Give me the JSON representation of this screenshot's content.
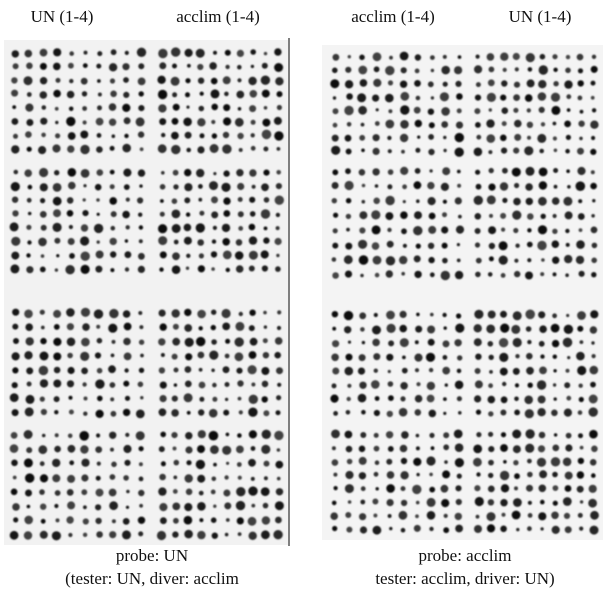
{
  "panels": [
    {
      "column_labels": [
        "UN (1-4)",
        "acclim (1-4)"
      ],
      "caption": [
        "probe: UN",
        "(tester: UN, diver: acclim"
      ]
    },
    {
      "column_labels": [
        "acclim (1-4)",
        "UN (1-4)"
      ],
      "caption": [
        "probe: acclim",
        "tester: acclim, driver: UN)"
      ]
    }
  ]
}
